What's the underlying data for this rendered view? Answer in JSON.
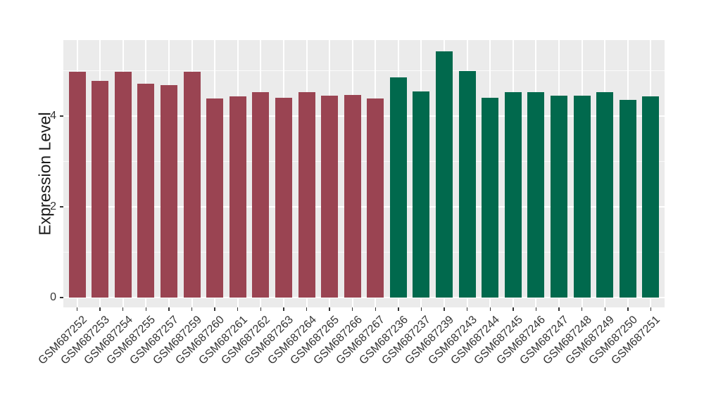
{
  "figure": {
    "background": "#FFFFFF",
    "panel_background": "#EBEBEB",
    "gridline_color": "#FFFFFF",
    "axis_text_color": "#333333",
    "axis_title_color": "#1A1A1A"
  },
  "chart_data": {
    "type": "bar",
    "title": "",
    "xlabel": "",
    "ylabel": "Expression Level",
    "ylim": [
      0,
      5.67
    ],
    "ytick_values": [
      0,
      2,
      4
    ],
    "ytick_labels": [
      "0",
      "2",
      "4"
    ],
    "minor_gridlines": [
      1,
      3,
      5
    ],
    "grid": "on",
    "legend_position": "none",
    "x_label_angle": 45,
    "groups": {
      "maroon": "#9A4452",
      "green": "#01694D"
    },
    "bars": [
      {
        "label": "GSM687252",
        "value": 4.98,
        "group": "maroon"
      },
      {
        "label": "GSM687253",
        "value": 4.77,
        "group": "maroon"
      },
      {
        "label": "GSM687254",
        "value": 4.98,
        "group": "maroon"
      },
      {
        "label": "GSM687255",
        "value": 4.71,
        "group": "maroon"
      },
      {
        "label": "GSM687257",
        "value": 4.68,
        "group": "maroon"
      },
      {
        "label": "GSM687259",
        "value": 4.98,
        "group": "maroon"
      },
      {
        "label": "GSM687260",
        "value": 4.38,
        "group": "maroon"
      },
      {
        "label": "GSM687261",
        "value": 4.44,
        "group": "maroon"
      },
      {
        "label": "GSM687262",
        "value": 4.53,
        "group": "maroon"
      },
      {
        "label": "GSM687263",
        "value": 4.4,
        "group": "maroon"
      },
      {
        "label": "GSM687264",
        "value": 4.53,
        "group": "maroon"
      },
      {
        "label": "GSM687265",
        "value": 4.45,
        "group": "maroon"
      },
      {
        "label": "GSM687266",
        "value": 4.46,
        "group": "maroon"
      },
      {
        "label": "GSM687267",
        "value": 4.38,
        "group": "maroon"
      },
      {
        "label": "GSM687236",
        "value": 4.86,
        "group": "green"
      },
      {
        "label": "GSM687237",
        "value": 4.55,
        "group": "green"
      },
      {
        "label": "GSM687239",
        "value": 5.42,
        "group": "green"
      },
      {
        "label": "GSM687243",
        "value": 4.99,
        "group": "green"
      },
      {
        "label": "GSM687244",
        "value": 4.41,
        "group": "green"
      },
      {
        "label": "GSM687245",
        "value": 4.53,
        "group": "green"
      },
      {
        "label": "GSM687246",
        "value": 4.53,
        "group": "green"
      },
      {
        "label": "GSM687247",
        "value": 4.45,
        "group": "green"
      },
      {
        "label": "GSM687248",
        "value": 4.45,
        "group": "green"
      },
      {
        "label": "GSM687249",
        "value": 4.52,
        "group": "green"
      },
      {
        "label": "GSM687250",
        "value": 4.35,
        "group": "green"
      },
      {
        "label": "GSM687251",
        "value": 4.43,
        "group": "green"
      }
    ]
  }
}
